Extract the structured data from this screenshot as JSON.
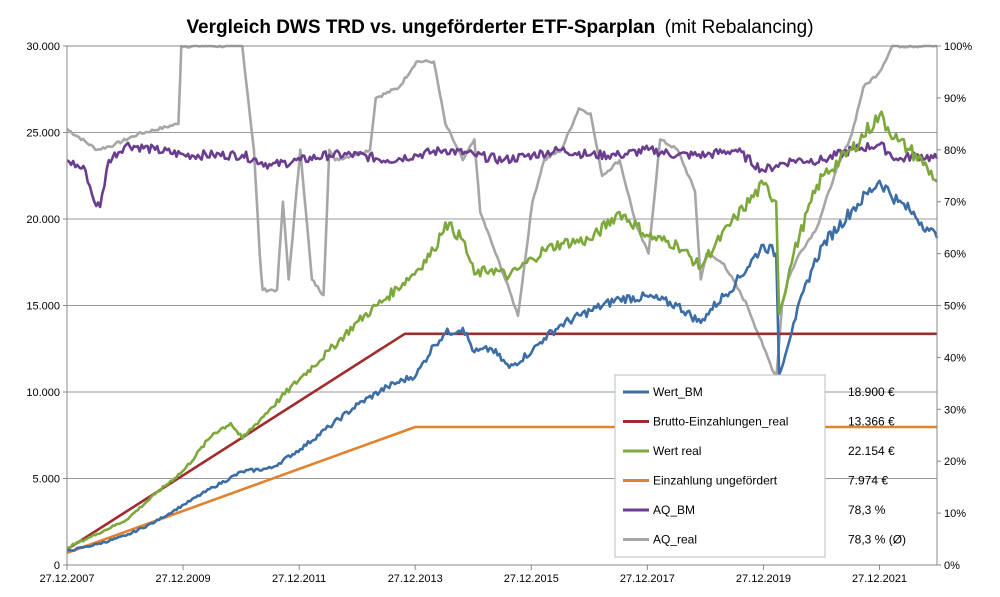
{
  "chart_data": {
    "type": "line",
    "title_bold": "Vergleich DWS TRD vs. ungeförderter ETF-Sparplan",
    "title_suffix": "(mit Rebalancing)",
    "x_ticks": [
      "27.12.2007",
      "27.12.2009",
      "27.12.2011",
      "27.12.2013",
      "27.12.2015",
      "27.12.2017",
      "27.12.2019",
      "27.12.2021"
    ],
    "x_range": [
      2007.98,
      2022.97
    ],
    "y_left": {
      "range": [
        0,
        30000
      ],
      "ticks": [
        0,
        5000,
        10000,
        15000,
        20000,
        25000,
        30000
      ],
      "tick_labels": [
        "0",
        "5.000",
        "10.000",
        "15.000",
        "20.000",
        "25.000",
        "30.000"
      ]
    },
    "y_right": {
      "range": [
        0,
        100
      ],
      "ticks": [
        0,
        10,
        20,
        30,
        40,
        50,
        60,
        70,
        80,
        90,
        100
      ],
      "tick_labels": [
        "0%",
        "10%",
        "20%",
        "30%",
        "40%",
        "50%",
        "60%",
        "70%",
        "80%",
        "90%",
        "100%"
      ]
    },
    "grid": true,
    "legend_position": "bottom-right",
    "series": [
      {
        "name": "Wert_BM",
        "color": "#3c6ea5",
        "axis": "left",
        "final_value": "18.900 €",
        "x": [
          2007.98,
          2008.5,
          2009.0,
          2009.5,
          2010.0,
          2010.5,
          2011.0,
          2011.5,
          2012.0,
          2012.5,
          2013.0,
          2013.5,
          2014.0,
          2014.3,
          2014.5,
          2014.8,
          2015.0,
          2015.3,
          2015.6,
          2016.0,
          2016.2,
          2016.5,
          2017.0,
          2017.5,
          2018.0,
          2018.5,
          2018.9,
          2019.0,
          2019.5,
          2019.98,
          2020.2,
          2020.25,
          2020.5,
          2020.8,
          2021.0,
          2021.5,
          2021.98,
          2022.3,
          2022.5,
          2022.8,
          2022.97
        ],
        "y": [
          800,
          1200,
          1700,
          2500,
          3500,
          4500,
          5400,
          5600,
          6700,
          8000,
          9300,
          10300,
          11000,
          12700,
          13400,
          13700,
          12300,
          12500,
          11400,
          12400,
          13100,
          13900,
          14700,
          15400,
          15500,
          15000,
          14000,
          14500,
          16300,
          18500,
          18000,
          11000,
          14000,
          17000,
          18500,
          20500,
          22200,
          21000,
          20500,
          19500,
          18900
        ]
      },
      {
        "name": "Brutto-Einzahlungen_real",
        "color": "#a02c2c",
        "axis": "left",
        "final_value": "13.366 €",
        "x": [
          2007.98,
          2013.8,
          2022.97
        ],
        "y": [
          900,
          13366,
          13366
        ]
      },
      {
        "name": "Wert real",
        "color": "#7da83c",
        "axis": "left",
        "final_value": "22.154 €",
        "x": [
          2007.98,
          2008.5,
          2009.0,
          2009.5,
          2010.0,
          2010.5,
          2010.8,
          2011.0,
          2011.5,
          2012.0,
          2012.5,
          2013.0,
          2013.5,
          2014.0,
          2014.3,
          2014.5,
          2014.8,
          2015.0,
          2015.3,
          2015.6,
          2016.0,
          2016.2,
          2016.5,
          2017.0,
          2017.5,
          2018.0,
          2018.5,
          2018.9,
          2019.0,
          2019.5,
          2019.98,
          2020.2,
          2020.25,
          2020.5,
          2020.8,
          2021.0,
          2021.5,
          2021.98,
          2022.3,
          2022.5,
          2022.8,
          2022.97
        ],
        "y": [
          1000,
          1800,
          2600,
          4100,
          5500,
          7600,
          8200,
          7300,
          9100,
          10800,
          12400,
          14100,
          15500,
          17000,
          18200,
          19800,
          18800,
          16800,
          17100,
          16700,
          17700,
          18200,
          18600,
          18800,
          20400,
          19000,
          18500,
          17200,
          17800,
          20100,
          22000,
          21000,
          14500,
          18000,
          21000,
          22500,
          24000,
          26000,
          24500,
          24000,
          23000,
          22154
        ]
      },
      {
        "name": "Einzahlung ungefördert",
        "color": "#e0832c",
        "axis": "left",
        "final_value": "7.974 €",
        "x": [
          2007.98,
          2013.98,
          2022.97
        ],
        "y": [
          700,
          7974,
          7974
        ]
      },
      {
        "name": "AQ_BM",
        "color": "#6a3d8f",
        "axis": "right",
        "final_value": "78,3 %",
        "x": [
          2007.98,
          2008.3,
          2008.45,
          2008.55,
          2008.7,
          2009.0,
          2009.5,
          2010.0,
          2010.5,
          2011.0,
          2011.5,
          2012.0,
          2012.5,
          2013.0,
          2013.5,
          2014.0,
          2014.5,
          2015.0,
          2015.5,
          2016.0,
          2016.5,
          2017.0,
          2017.5,
          2018.0,
          2018.5,
          2019.0,
          2019.5,
          2019.98,
          2020.2,
          2020.5,
          2021.0,
          2021.5,
          2021.98,
          2022.3,
          2022.6,
          2022.97
        ],
        "y": [
          78,
          76,
          70,
          69,
          78,
          81,
          80,
          79,
          79,
          79,
          77,
          78,
          79,
          79,
          78,
          79,
          80,
          79,
          78,
          79,
          80,
          79,
          79,
          80,
          79,
          79,
          80,
          76,
          77,
          78,
          78,
          80,
          81,
          78,
          79,
          78.3
        ]
      },
      {
        "name": "AQ_real",
        "color": "#a6a6a6",
        "axis": "right",
        "final_value": "78,3 % (Ø)",
        "x": [
          2007.98,
          2008.5,
          2008.8,
          2009.2,
          2009.9,
          2009.95,
          2010.3,
          2011.0,
          2011.2,
          2011.3,
          2011.35,
          2011.6,
          2011.7,
          2011.8,
          2012.0,
          2012.2,
          2012.4,
          2012.5,
          2012.6,
          2012.9,
          2013.2,
          2013.3,
          2013.7,
          2014.0,
          2014.3,
          2014.5,
          2014.8,
          2015.0,
          2015.1,
          2015.3,
          2015.6,
          2015.75,
          2016.0,
          2016.2,
          2016.5,
          2016.8,
          2017.0,
          2017.2,
          2017.5,
          2017.8,
          2018.0,
          2018.2,
          2018.5,
          2018.8,
          2018.9,
          2019.0,
          2019.3,
          2019.7,
          2019.98,
          2020.2,
          2020.3,
          2020.4,
          2020.6,
          2020.9,
          2021.2,
          2021.5,
          2021.7,
          2021.98,
          2022.2,
          2022.5,
          2022.97
        ],
        "y": [
          84,
          80,
          81,
          83,
          85,
          100,
          100,
          100,
          80,
          60,
          53,
          53,
          70,
          55,
          80,
          55,
          52,
          80,
          78,
          79,
          80,
          90,
          92,
          97,
          97,
          85,
          78,
          82,
          68,
          62,
          53,
          48,
          70,
          78,
          80,
          88,
          87,
          75,
          78,
          65,
          60,
          82,
          80,
          72,
          55,
          60,
          58,
          50,
          42,
          36,
          50,
          55,
          60,
          65,
          75,
          83,
          92,
          95,
          100,
          100,
          100
        ]
      }
    ]
  }
}
